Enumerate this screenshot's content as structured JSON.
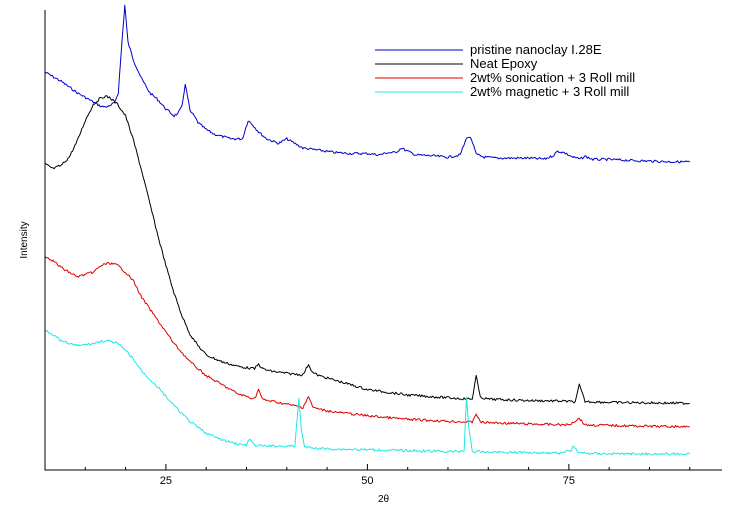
{
  "chart_data": {
    "type": "line",
    "xlabel": "2θ",
    "ylabel": "Intensity",
    "xlim": [
      10,
      94
    ],
    "ylim": [
      0,
      100
    ],
    "x_ticks": [
      25,
      50,
      75
    ],
    "x_minor_ticks": [
      15,
      20,
      30,
      35,
      40,
      45,
      55,
      60,
      65,
      70,
      80,
      85,
      90
    ],
    "y_ticks_labeled": false,
    "grid": false,
    "legend_position": "top-right",
    "series": [
      {
        "name": "pristine nanoclay I.28E",
        "color": "#0000cc",
        "x": [
          10,
          12,
          14,
          16,
          17,
          18,
          18.6,
          19.1,
          19.5,
          19.9,
          20.3,
          21,
          22,
          23,
          24,
          25,
          26,
          26.5,
          27,
          27.4,
          28,
          28.5,
          29,
          30,
          31,
          33,
          34.5,
          35.2,
          35.8,
          36.5,
          37.5,
          39,
          40,
          42,
          44,
          46,
          48,
          50,
          51.5,
          52.5,
          53.5,
          54.2,
          55,
          56,
          58,
          60,
          61.5,
          62.4,
          62.9,
          63.5,
          64.5,
          66,
          68,
          70,
          72,
          73,
          73.6,
          74.4,
          75.5,
          76.4,
          77,
          78,
          80,
          84,
          88,
          90
        ],
        "y": [
          86.5,
          84.5,
          82,
          80,
          79,
          79,
          79.8,
          82,
          92,
          101,
          93,
          89,
          85,
          82,
          80.5,
          78.5,
          77,
          77.5,
          79,
          84,
          78,
          77,
          75.5,
          74,
          73,
          72,
          72,
          76,
          75,
          73.5,
          72,
          71,
          72,
          70,
          69.5,
          69,
          68.8,
          68.8,
          68.5,
          69,
          69,
          70,
          69.3,
          68.5,
          68.3,
          68,
          68.5,
          72.5,
          72,
          68.6,
          68,
          67.8,
          67.8,
          67.8,
          67.6,
          68.3,
          69.3,
          69,
          68,
          67.6,
          68.2,
          67.5,
          67.5,
          67.2,
          67,
          67
        ]
      },
      {
        "name": "Neat Epoxy",
        "color": "#000000",
        "x": [
          10,
          11,
          12,
          13,
          14,
          15,
          16,
          17,
          17.5,
          18,
          19,
          20,
          21,
          22,
          23,
          24,
          25,
          26,
          27,
          28,
          29,
          30,
          32,
          34,
          36,
          36.5,
          37,
          38,
          40,
          42,
          42.7,
          43.2,
          44,
          46,
          48,
          50,
          55,
          60,
          62,
          63,
          63.5,
          64,
          65,
          70,
          74,
          75.8,
          76.3,
          77,
          80,
          85,
          90
        ],
        "y": [
          66.5,
          65.5,
          66.2,
          68,
          71.5,
          76,
          79.5,
          81,
          81.2,
          81,
          79.5,
          77,
          71.5,
          65,
          58,
          51,
          44.5,
          38.5,
          33.5,
          29.5,
          27,
          25,
          23.5,
          22.5,
          22,
          23,
          22,
          21.5,
          21,
          20.7,
          23,
          21.2,
          20.5,
          19.5,
          18.5,
          17.5,
          16.3,
          15.7,
          15.5,
          15.4,
          20.5,
          15.8,
          15.4,
          15.1,
          15,
          14.8,
          18.5,
          14.9,
          14.7,
          14.6,
          14.5
        ]
      },
      {
        "name": "2wt% sonication +  3 Roll mill",
        "color": "#dd0000",
        "x": [
          10,
          11,
          12,
          14,
          16,
          17,
          18,
          19,
          20,
          21,
          22,
          24,
          26,
          28,
          30,
          32,
          34,
          36,
          36.5,
          37,
          38,
          40,
          42,
          42.7,
          43.2,
          44,
          46,
          50,
          55,
          60,
          63,
          63.5,
          64,
          65,
          70,
          75,
          76.3,
          77,
          80,
          85,
          90
        ],
        "y": [
          46.5,
          45.5,
          44,
          42,
          43,
          44.5,
          45,
          44.5,
          43,
          41,
          37.5,
          32.5,
          27.5,
          23.5,
          20.5,
          18.5,
          16.5,
          15.5,
          17.5,
          15.3,
          15,
          14.3,
          13.6,
          16,
          13.7,
          13.2,
          12.6,
          11.8,
          11,
          10.6,
          10.4,
          12.3,
          10.4,
          10.3,
          10,
          9.8,
          11.3,
          9.8,
          9.7,
          9.5,
          9.4
        ]
      },
      {
        "name": "2wt% magnetic + 3 Roll mill",
        "color": "#22e5e5",
        "x": [
          10,
          11,
          12,
          14,
          16,
          17,
          18,
          19,
          20,
          21,
          22,
          24,
          26,
          28,
          30,
          32,
          34,
          35,
          35.4,
          36,
          38,
          40,
          41,
          41.5,
          41.8,
          42.2,
          43,
          45,
          50,
          55,
          58,
          61,
          62,
          62.3,
          62.6,
          63,
          65,
          70,
          74,
          75.3,
          75.6,
          76.2,
          78,
          82,
          86,
          90
        ],
        "y": [
          30.5,
          29.5,
          28,
          27,
          27.5,
          28,
          28,
          27.5,
          26,
          24,
          21.5,
          18,
          14,
          10.5,
          8,
          6.5,
          5.6,
          5.4,
          6.8,
          5.3,
          5.2,
          5.2,
          5.1,
          15.5,
          9,
          5,
          4.8,
          4.6,
          4.4,
          4.2,
          4.1,
          4,
          4.2,
          16,
          9,
          4,
          3.9,
          3.8,
          3.7,
          4.3,
          5.3,
          3.7,
          3.6,
          3.5,
          3.5,
          3.5
        ]
      }
    ]
  }
}
